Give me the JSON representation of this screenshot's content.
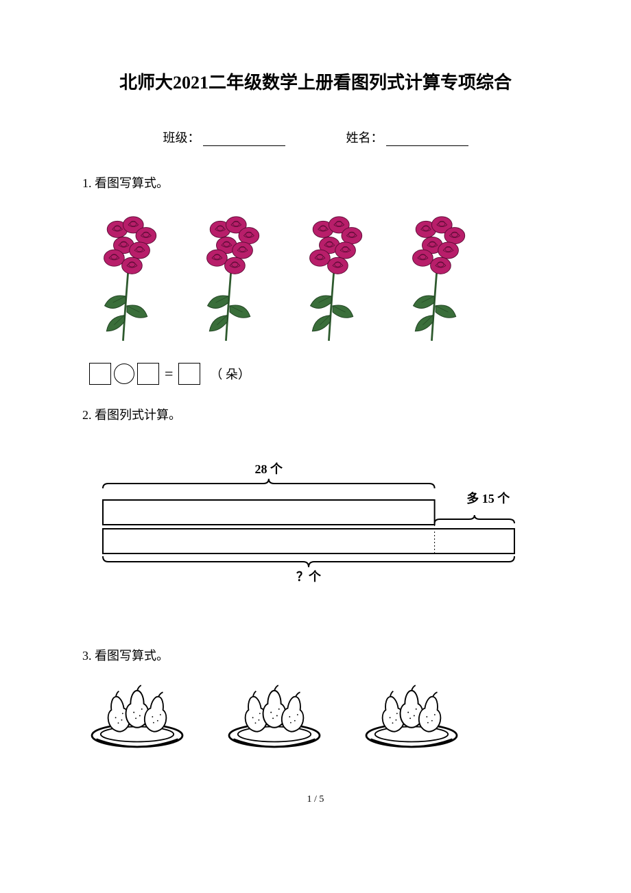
{
  "title": "北师大2021二年级数学上册看图列式计算专项综合",
  "header": {
    "class_label": "班级：",
    "name_label": "姓名："
  },
  "questions": {
    "q1": {
      "number": "1.",
      "text": "看图写算式。",
      "unit_label": "（ 朵）"
    },
    "q2": {
      "number": "2.",
      "text": "看图列式计算。",
      "top_label": "28 个",
      "right_label": "多 15 个",
      "bottom_label": "？个"
    },
    "q3": {
      "number": "3.",
      "text": "看图写算式。"
    }
  },
  "flowers": {
    "group_count": 4,
    "petal_fill": "#b81e6a",
    "petal_stroke": "#5a0b34",
    "leaf_fill": "#3a6e3a",
    "leaf_stroke": "#1e4020",
    "stem_color": "#2e5a2e"
  },
  "bar_diagram": {
    "line_color": "#000000",
    "line_width": 2,
    "top_bar_width_ratio": 0.78,
    "font_size": 18,
    "font_weight": "bold"
  },
  "pears": {
    "group_count": 3,
    "pear_fill": "#ffffff",
    "pear_stroke": "#000000",
    "plate_fill": "#ffffff",
    "plate_stroke": "#000000"
  },
  "page_indicator": "1 / 5"
}
